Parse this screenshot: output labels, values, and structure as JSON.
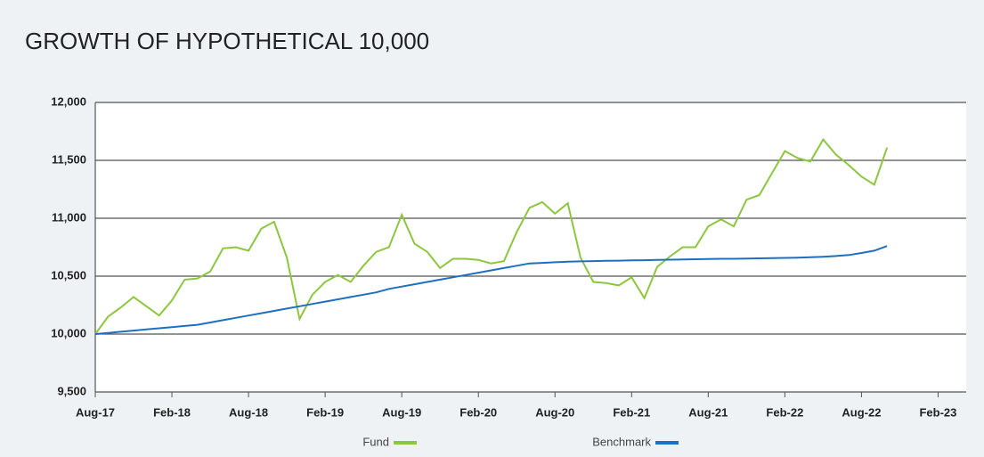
{
  "chart_data": {
    "type": "line",
    "title": "GROWTH OF HYPOTHETICAL 10,000",
    "x": [
      0,
      1,
      2,
      3,
      4,
      5,
      6,
      7,
      8,
      9,
      10,
      11,
      12,
      13,
      14,
      15,
      16,
      17,
      18,
      19,
      20,
      21,
      22,
      23,
      24,
      25,
      26,
      27,
      28,
      29,
      30,
      31,
      32,
      33,
      34,
      35,
      36,
      37,
      38,
      39,
      40,
      41,
      42,
      43,
      44,
      45,
      46,
      47,
      48,
      49,
      50,
      51,
      52,
      53,
      54,
      55,
      56,
      57,
      58,
      59,
      60,
      61,
      62
    ],
    "series": [
      {
        "name": "Fund",
        "color": "#8dc63f",
        "values": [
          10000,
          10150,
          10230,
          10320,
          10240,
          10160,
          10290,
          10470,
          10480,
          10540,
          10740,
          10750,
          10720,
          10910,
          10970,
          10660,
          10130,
          10340,
          10450,
          10510,
          10450,
          10590,
          10710,
          10750,
          11030,
          10780,
          10710,
          10570,
          10650,
          10650,
          10640,
          10610,
          10630,
          10880,
          11090,
          11140,
          11040,
          11130,
          10660,
          10450,
          10440,
          10420,
          10490,
          10310,
          10580,
          10670,
          10750,
          10750,
          10930,
          10990,
          10930,
          11160,
          11200,
          11390,
          11580,
          11520,
          11490,
          11680,
          11550,
          11460,
          11360,
          11290,
          11610
        ]
      },
      {
        "name": "Benchmark",
        "color": "#1f6fc1",
        "values": [
          10000,
          10010,
          10020,
          10030,
          10040,
          10050,
          10060,
          10070,
          10080,
          10100,
          10120,
          10140,
          10160,
          10180,
          10200,
          10220,
          10240,
          10260,
          10280,
          10300,
          10320,
          10340,
          10360,
          10390,
          10410,
          10430,
          10450,
          10470,
          10490,
          10510,
          10530,
          10550,
          10570,
          10590,
          10610,
          10615,
          10620,
          10625,
          10628,
          10630,
          10632,
          10634,
          10636,
          10638,
          10640,
          10642,
          10644,
          10646,
          10648,
          10650,
          10650,
          10652,
          10654,
          10656,
          10658,
          10660,
          10664,
          10668,
          10674,
          10682,
          10700,
          10720,
          10760
        ]
      }
    ],
    "xlim": [
      0,
      68.2
    ],
    "xticks": [
      {
        "value": 0,
        "label": "Aug-17"
      },
      {
        "value": 6,
        "label": "Feb-18"
      },
      {
        "value": 12,
        "label": "Aug-18"
      },
      {
        "value": 18,
        "label": "Feb-19"
      },
      {
        "value": 24,
        "label": "Aug-19"
      },
      {
        "value": 30,
        "label": "Feb-20"
      },
      {
        "value": 36,
        "label": "Aug-20"
      },
      {
        "value": 42,
        "label": "Feb-21"
      },
      {
        "value": 48,
        "label": "Aug-21"
      },
      {
        "value": 54,
        "label": "Feb-22"
      },
      {
        "value": 60,
        "label": "Aug-22"
      },
      {
        "value": 66,
        "label": "Feb-23"
      }
    ],
    "ylim": [
      9500,
      12000
    ],
    "yticks": [
      {
        "value": 9500,
        "label": "9,500"
      },
      {
        "value": 10000,
        "label": "10,000"
      },
      {
        "value": 10500,
        "label": "10,500"
      },
      {
        "value": 11000,
        "label": "11,000"
      },
      {
        "value": 11500,
        "label": "11,500"
      },
      {
        "value": 12000,
        "label": "12,000"
      }
    ],
    "grid": true,
    "legend": "bottom"
  }
}
